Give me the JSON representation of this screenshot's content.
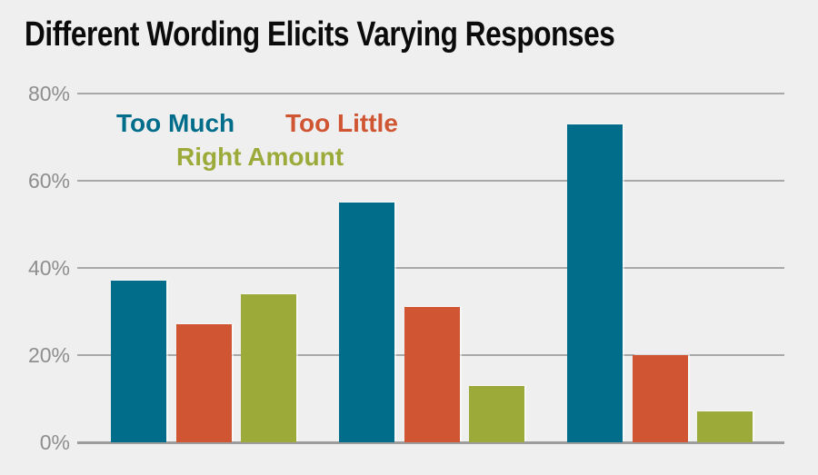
{
  "title": "Different Wording Elicits Varying Responses",
  "colors": {
    "background": "#efefef",
    "title": "#0b0b0b",
    "gridline": "#a8a8a8",
    "baseline": "#9c9c9c",
    "tick_label": "#8e8e8e"
  },
  "legend": [
    {
      "label": "Too Much",
      "color": "#026d8a"
    },
    {
      "label": "Too Little",
      "color": "#d05532"
    },
    {
      "label": "Right Amount",
      "color": "#9caa39"
    }
  ],
  "chart_data": {
    "type": "bar",
    "title": "Different Wording Elicits Varying Responses",
    "categories": [
      "",
      "",
      ""
    ],
    "series": [
      {
        "name": "Too Much",
        "color": "#026d8a",
        "values": [
          37,
          55,
          73
        ]
      },
      {
        "name": "Too Little",
        "color": "#d05532",
        "values": [
          27,
          31,
          20
        ]
      },
      {
        "name": "Right Amount",
        "color": "#9caa39",
        "values": [
          34,
          13,
          7
        ]
      }
    ],
    "xlabel": "",
    "ylabel": "",
    "ylim": [
      0,
      80
    ],
    "yticks": [
      0,
      20,
      40,
      60,
      80
    ],
    "ytick_labels": [
      "0%",
      "20%",
      "40%",
      "60%",
      "80%"
    ],
    "grid": true,
    "legend_position": "inside-top-left",
    "x_axis_labels_visible": false
  }
}
